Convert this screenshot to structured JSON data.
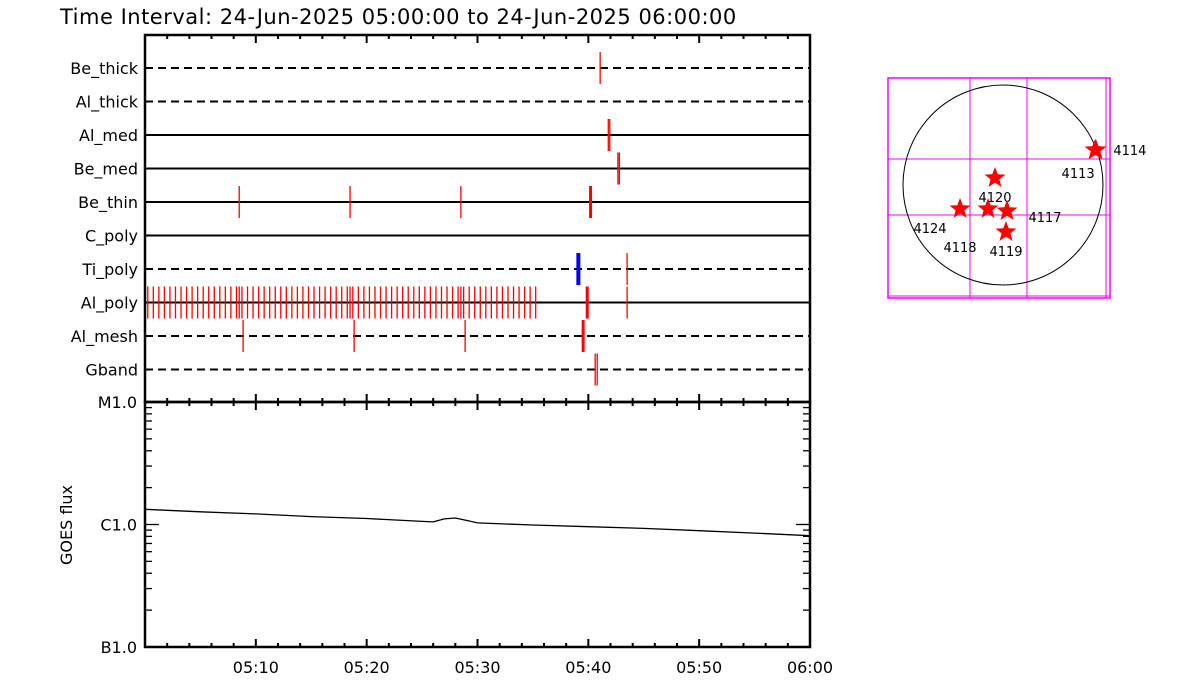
{
  "title": "Time Interval: 24-Jun-2025 05:00:00 to 24-Jun-2025 06:00:00",
  "chart_data": [
    {
      "type": "timeline",
      "xlim": [
        "05:00:00",
        "06:00:00"
      ],
      "x_ticks": [
        "05:10",
        "05:20",
        "05:30",
        "05:40",
        "05:50",
        "06:00"
      ],
      "rows": [
        {
          "name": "Be_thick",
          "line": "dashed",
          "events": [
            {
              "t": "05:41:04",
              "color": "#ff0000",
              "strong": false
            }
          ]
        },
        {
          "name": "Al_thick",
          "line": "dashed",
          "events": []
        },
        {
          "name": "Al_med",
          "line": "solid",
          "events": [
            {
              "t": "05:41:48",
              "color": "#ff0000",
              "strong": false
            },
            {
              "t": "05:41:56",
              "color": "#ff0000",
              "strong": false
            }
          ]
        },
        {
          "name": "Be_med",
          "line": "solid",
          "events": [
            {
              "t": "05:42:40",
              "color": "#ff0000",
              "strong": false
            },
            {
              "t": "05:42:48",
              "color": "#ff0000",
              "strong": false
            }
          ]
        },
        {
          "name": "Be_thin",
          "line": "solid",
          "events": [
            {
              "t": "05:08:30",
              "color": "#ff0000",
              "strong": false
            },
            {
              "t": "05:18:30",
              "color": "#ff0000",
              "strong": false
            },
            {
              "t": "05:28:30",
              "color": "#ff0000",
              "strong": false
            },
            {
              "t": "05:40:12",
              "color": "#ff0000",
              "strong": true
            }
          ]
        },
        {
          "name": "C_poly",
          "line": "solid",
          "events": []
        },
        {
          "name": "Ti_poly",
          "line": "dashed",
          "events": [
            {
              "t": "05:39:06",
              "color": "#0000ff",
              "strong": true
            },
            {
              "t": "05:43:30",
              "color": "#ff0000",
              "strong": false
            }
          ]
        },
        {
          "name": "Al_poly",
          "line": "solid",
          "events": [
            {
              "t": "05:00:15",
              "color": "#ff0000"
            },
            {
              "t": "05:00:45",
              "color": "#ff0000"
            },
            {
              "t": "05:01:15",
              "color": "#ff0000"
            },
            {
              "t": "05:01:45",
              "color": "#ff0000"
            },
            {
              "t": "05:02:15",
              "color": "#ff0000"
            },
            {
              "t": "05:02:45",
              "color": "#ff0000"
            },
            {
              "t": "05:03:15",
              "color": "#ff0000"
            },
            {
              "t": "05:03:45",
              "color": "#ff0000"
            },
            {
              "t": "05:04:15",
              "color": "#ff0000"
            },
            {
              "t": "05:04:45",
              "color": "#ff0000"
            },
            {
              "t": "05:05:15",
              "color": "#ff0000"
            },
            {
              "t": "05:05:45",
              "color": "#ff0000"
            },
            {
              "t": "05:06:15",
              "color": "#ff0000"
            },
            {
              "t": "05:06:45",
              "color": "#ff0000"
            },
            {
              "t": "05:07:15",
              "color": "#ff0000"
            },
            {
              "t": "05:07:45",
              "color": "#ff0000"
            },
            {
              "t": "05:08:15",
              "color": "#ff0000"
            },
            {
              "t": "05:08:30",
              "color": "#ff0000"
            },
            {
              "t": "05:08:45",
              "color": "#ff0000"
            },
            {
              "t": "05:09:15",
              "color": "#ff0000"
            },
            {
              "t": "05:09:45",
              "color": "#ff0000"
            },
            {
              "t": "05:10:15",
              "color": "#ff0000"
            },
            {
              "t": "05:10:45",
              "color": "#ff0000"
            },
            {
              "t": "05:11:15",
              "color": "#ff0000"
            },
            {
              "t": "05:11:45",
              "color": "#ff0000"
            },
            {
              "t": "05:12:15",
              "color": "#ff0000"
            },
            {
              "t": "05:12:45",
              "color": "#ff0000"
            },
            {
              "t": "05:13:15",
              "color": "#ff0000"
            },
            {
              "t": "05:13:45",
              "color": "#ff0000"
            },
            {
              "t": "05:14:15",
              "color": "#ff0000"
            },
            {
              "t": "05:14:45",
              "color": "#ff0000"
            },
            {
              "t": "05:15:15",
              "color": "#ff0000"
            },
            {
              "t": "05:15:45",
              "color": "#ff0000"
            },
            {
              "t": "05:16:15",
              "color": "#ff0000"
            },
            {
              "t": "05:16:45",
              "color": "#ff0000"
            },
            {
              "t": "05:17:15",
              "color": "#ff0000"
            },
            {
              "t": "05:17:45",
              "color": "#ff0000"
            },
            {
              "t": "05:18:15",
              "color": "#ff0000"
            },
            {
              "t": "05:18:30",
              "color": "#ff0000"
            },
            {
              "t": "05:18:45",
              "color": "#ff0000"
            },
            {
              "t": "05:19:15",
              "color": "#ff0000"
            },
            {
              "t": "05:19:45",
              "color": "#ff0000"
            },
            {
              "t": "05:20:15",
              "color": "#ff0000"
            },
            {
              "t": "05:20:45",
              "color": "#ff0000"
            },
            {
              "t": "05:21:15",
              "color": "#ff0000"
            },
            {
              "t": "05:21:45",
              "color": "#ff0000"
            },
            {
              "t": "05:22:15",
              "color": "#ff0000"
            },
            {
              "t": "05:22:45",
              "color": "#ff0000"
            },
            {
              "t": "05:23:15",
              "color": "#ff0000"
            },
            {
              "t": "05:23:45",
              "color": "#ff0000"
            },
            {
              "t": "05:24:15",
              "color": "#ff0000"
            },
            {
              "t": "05:24:45",
              "color": "#ff0000"
            },
            {
              "t": "05:25:15",
              "color": "#ff0000"
            },
            {
              "t": "05:25:45",
              "color": "#ff0000"
            },
            {
              "t": "05:26:15",
              "color": "#ff0000"
            },
            {
              "t": "05:26:45",
              "color": "#ff0000"
            },
            {
              "t": "05:27:15",
              "color": "#ff0000"
            },
            {
              "t": "05:27:45",
              "color": "#ff0000"
            },
            {
              "t": "05:28:15",
              "color": "#ff0000"
            },
            {
              "t": "05:28:30",
              "color": "#ff0000"
            },
            {
              "t": "05:28:45",
              "color": "#ff0000"
            },
            {
              "t": "05:29:15",
              "color": "#ff0000"
            },
            {
              "t": "05:29:45",
              "color": "#ff0000"
            },
            {
              "t": "05:30:15",
              "color": "#ff0000"
            },
            {
              "t": "05:30:45",
              "color": "#ff0000"
            },
            {
              "t": "05:31:15",
              "color": "#ff0000"
            },
            {
              "t": "05:31:45",
              "color": "#ff0000"
            },
            {
              "t": "05:32:15",
              "color": "#ff0000"
            },
            {
              "t": "05:32:45",
              "color": "#ff0000"
            },
            {
              "t": "05:33:15",
              "color": "#ff0000"
            },
            {
              "t": "05:33:45",
              "color": "#ff0000"
            },
            {
              "t": "05:34:15",
              "color": "#ff0000"
            },
            {
              "t": "05:34:45",
              "color": "#ff0000"
            },
            {
              "t": "05:35:15",
              "color": "#ff0000"
            },
            {
              "t": "05:39:54",
              "color": "#ff0000",
              "strong": true
            },
            {
              "t": "05:43:30",
              "color": "#ff0000",
              "strong": false
            }
          ]
        },
        {
          "name": "Al_mesh",
          "line": "dashed",
          "events": [
            {
              "t": "05:08:51",
              "color": "#ff0000",
              "strong": false
            },
            {
              "t": "05:18:52",
              "color": "#ff0000",
              "strong": false
            },
            {
              "t": "05:28:53",
              "color": "#ff0000",
              "strong": false
            },
            {
              "t": "05:39:32",
              "color": "#ff0000",
              "strong": true
            }
          ]
        },
        {
          "name": "Gband",
          "line": "dashed",
          "events": [
            {
              "t": "05:40:37",
              "color": "#ff0000",
              "strong": false
            },
            {
              "t": "05:40:48",
              "color": "#ff0000",
              "strong": false
            }
          ]
        }
      ]
    },
    {
      "type": "line",
      "ylabel": "GOES flux",
      "yscale": "log",
      "ylim": [
        1e-07,
        1e-05
      ],
      "y_tick_labels": [
        {
          "label": "M1.0",
          "value": 1e-05
        },
        {
          "label": "C1.0",
          "value": 1e-06
        },
        {
          "label": "B1.0",
          "value": 1e-07
        }
      ],
      "xlim": [
        "05:00:00",
        "06:00:00"
      ],
      "x_ticks": [
        "05:10",
        "05:20",
        "05:30",
        "05:40",
        "05:50",
        "06:00"
      ],
      "series": [
        {
          "color": "#000000",
          "points": [
            [
              "05:00:00",
              1.33e-06
            ],
            [
              "05:05:00",
              1.27e-06
            ],
            [
              "05:10:00",
              1.22e-06
            ],
            [
              "05:15:00",
              1.16e-06
            ],
            [
              "05:20:00",
              1.12e-06
            ],
            [
              "05:25:00",
              1.06e-06
            ],
            [
              "05:26:00",
              1.05e-06
            ],
            [
              "05:27:00",
              1.11e-06
            ],
            [
              "05:28:00",
              1.13e-06
            ],
            [
              "05:29:00",
              1.08e-06
            ],
            [
              "05:30:00",
              1.03e-06
            ],
            [
              "05:35:00",
              9.9e-07
            ],
            [
              "05:40:00",
              9.6e-07
            ],
            [
              "05:45:00",
              9.3e-07
            ],
            [
              "05:50:00",
              8.9e-07
            ],
            [
              "05:55:00",
              8.5e-07
            ],
            [
              "06:00:00",
              8.1e-07
            ]
          ]
        }
      ]
    },
    {
      "type": "scatter",
      "name_hint": "solar disk map",
      "units": "arcsec",
      "xlim": [
        -1150,
        1150
      ],
      "ylim": [
        -1150,
        1150
      ],
      "disk_radius": 945,
      "grid_color": "#ff00ff",
      "marker": "star",
      "marker_color": "#ff0000",
      "points": [
        {
          "label": "4113",
          "x": 870,
          "y": 331
        },
        {
          "label": "4114",
          "x": 878,
          "y": 331
        },
        {
          "label": "4120",
          "x": -76,
          "y": 66
        },
        {
          "label": "4124",
          "x": -406,
          "y": -227
        },
        {
          "label": "4118",
          "x": -142,
          "y": -227
        },
        {
          "label": "4117",
          "x": 38,
          "y": -246
        },
        {
          "label": "4119",
          "x": 28,
          "y": -444
        }
      ]
    }
  ]
}
